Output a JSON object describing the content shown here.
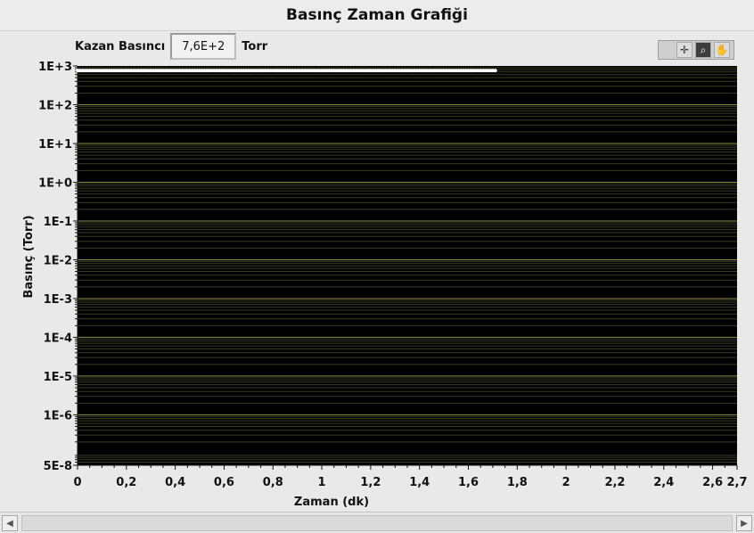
{
  "window": {
    "title": "Basınç Zaman Grafiği"
  },
  "digital_indicator": {
    "label": "Kazan Basıncı",
    "value": "7,6E+2",
    "unit": "Torr"
  },
  "graph_palette": {
    "tools": [
      {
        "icon": "cursor-crosshair-icon",
        "glyph": "✛",
        "active": false
      },
      {
        "icon": "zoom-icon",
        "glyph": "⌕",
        "active": true
      },
      {
        "icon": "pan-hand-icon",
        "glyph": "✋",
        "active": false
      }
    ]
  },
  "colors": {
    "plot_bg": "#000000",
    "grid_major": "#8e8e4a",
    "grid_minor": "#3a3a24",
    "trace": "#ffffff"
  },
  "chart_data": {
    "type": "scatter",
    "xlabel": "Zaman (dk)",
    "ylabel": "Basınç (Torr)",
    "x_scale": "linear",
    "y_scale": "log",
    "xlim": [
      0,
      2.7
    ],
    "ylim": [
      5e-08,
      1000
    ],
    "x_ticks": [
      "0",
      "0,2",
      "0,4",
      "0,6",
      "0,8",
      "1",
      "1,2",
      "1,4",
      "1,6",
      "1,8",
      "2",
      "2,2",
      "2,4",
      "2,6",
      "2,7"
    ],
    "x_tick_values": [
      0,
      0.2,
      0.4,
      0.6,
      0.8,
      1,
      1.2,
      1.4,
      1.6,
      1.8,
      2,
      2.2,
      2.4,
      2.6,
      2.7
    ],
    "y_ticks": [
      "1E+3",
      "1E+2",
      "1E+1",
      "1E+0",
      "1E-1",
      "1E-2",
      "1E-3",
      "1E-4",
      "1E-5",
      "1E-6",
      "5E-8"
    ],
    "y_tick_values": [
      1000,
      100,
      10,
      1,
      0.1,
      0.01,
      0.001,
      0.0001,
      1e-05,
      1e-06,
      5e-08
    ],
    "grid": true,
    "series": [
      {
        "x_start": 0,
        "x_end": 1.71,
        "x_step": 0.01,
        "y_constant": 760
      }
    ]
  },
  "scrollbar": {
    "left_glyph": "◀",
    "right_glyph": "▶"
  }
}
